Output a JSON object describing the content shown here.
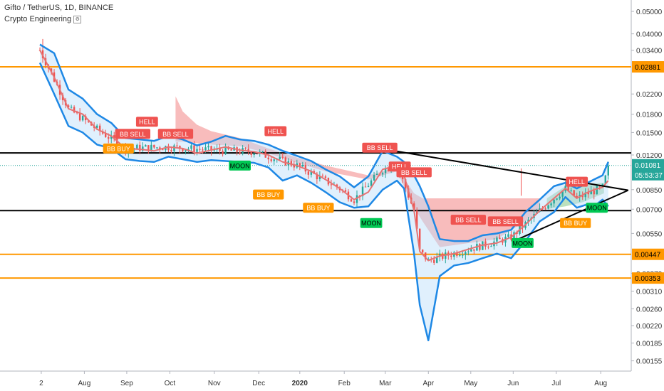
{
  "header": {
    "title": "Gifto / TetherUS, 1D, BINANCE",
    "indicator": "Crypto Engineering",
    "indicator_icon": "settings-icon"
  },
  "chart_data": {
    "type": "candlestick",
    "symbol": "Gifto / TetherUS",
    "interval": "1D",
    "exchange": "BINANCE",
    "y_scale": "log",
    "ylim": [
      0.0014,
      0.056
    ],
    "y_ticks": [
      "0.05000",
      "0.04000",
      "0.03400",
      "0.02200",
      "0.01800",
      "0.01500",
      "0.01200",
      "0.00850",
      "0.00700",
      "0.00550",
      "0.00370",
      "0.00310",
      "0.00260",
      "0.00220",
      "0.00185",
      "0.00155"
    ],
    "x_ticks": [
      "2",
      "Aug",
      "Sep",
      "Oct",
      "Nov",
      "Dec",
      "2020",
      "Feb",
      "Mar",
      "Apr",
      "May",
      "Jun",
      "Jul",
      "Aug"
    ],
    "bands": [
      {
        "x": 0,
        "y": 0.034,
        "lower": 0.03,
        "upper": 0.036
      },
      {
        "x": 10,
        "y": 0.026,
        "lower": 0.022,
        "upper": 0.033
      },
      {
        "x": 20,
        "y": 0.019,
        "lower": 0.016,
        "upper": 0.023
      },
      {
        "x": 30,
        "y": 0.018,
        "lower": 0.015,
        "upper": 0.021
      },
      {
        "x": 40,
        "y": 0.0155,
        "lower": 0.0133,
        "upper": 0.018
      },
      {
        "x": 50,
        "y": 0.0145,
        "lower": 0.0128,
        "upper": 0.0165
      },
      {
        "x": 60,
        "y": 0.0128,
        "lower": 0.0115,
        "upper": 0.0142
      },
      {
        "x": 70,
        "y": 0.0127,
        "lower": 0.0113,
        "upper": 0.014
      },
      {
        "x": 80,
        "y": 0.0125,
        "lower": 0.0112,
        "upper": 0.0138
      },
      {
        "x": 90,
        "y": 0.013,
        "lower": 0.0118,
        "upper": 0.0145
      },
      {
        "x": 100,
        "y": 0.0128,
        "lower": 0.0115,
        "upper": 0.014
      },
      {
        "x": 110,
        "y": 0.0122,
        "lower": 0.0112,
        "upper": 0.0132
      },
      {
        "x": 120,
        "y": 0.0126,
        "lower": 0.0114,
        "upper": 0.0137
      },
      {
        "x": 130,
        "y": 0.013,
        "lower": 0.0113,
        "upper": 0.0145
      },
      {
        "x": 140,
        "y": 0.0126,
        "lower": 0.0112,
        "upper": 0.014
      },
      {
        "x": 150,
        "y": 0.0124,
        "lower": 0.0111,
        "upper": 0.0138
      },
      {
        "x": 160,
        "y": 0.012,
        "lower": 0.0106,
        "upper": 0.0133
      },
      {
        "x": 170,
        "y": 0.0112,
        "lower": 0.0093,
        "upper": 0.0125
      },
      {
        "x": 180,
        "y": 0.0108,
        "lower": 0.0098,
        "upper": 0.0119
      },
      {
        "x": 190,
        "y": 0.0102,
        "lower": 0.0091,
        "upper": 0.0113
      },
      {
        "x": 200,
        "y": 0.0094,
        "lower": 0.0083,
        "upper": 0.0104
      },
      {
        "x": 210,
        "y": 0.0086,
        "lower": 0.0075,
        "upper": 0.0097
      },
      {
        "x": 220,
        "y": 0.0077,
        "lower": 0.0071,
        "upper": 0.0087
      },
      {
        "x": 230,
        "y": 0.0083,
        "lower": 0.0072,
        "upper": 0.0097
      },
      {
        "x": 240,
        "y": 0.0104,
        "lower": 0.0085,
        "upper": 0.0125
      },
      {
        "x": 250,
        "y": 0.0108,
        "lower": 0.0093,
        "upper": 0.0118
      },
      {
        "x": 255,
        "y": 0.0098,
        "lower": 0.0086,
        "upper": 0.0112
      },
      {
        "x": 262,
        "y": 0.0069,
        "lower": 0.0045,
        "upper": 0.0098
      },
      {
        "x": 266,
        "y": 0.0046,
        "lower": 0.0027,
        "upper": 0.0088
      },
      {
        "x": 272,
        "y": 0.0042,
        "lower": 0.0019,
        "upper": 0.0072
      },
      {
        "x": 280,
        "y": 0.0044,
        "lower": 0.0036,
        "upper": 0.0052
      },
      {
        "x": 290,
        "y": 0.0045,
        "lower": 0.004,
        "upper": 0.0051
      },
      {
        "x": 300,
        "y": 0.0047,
        "lower": 0.0041,
        "upper": 0.0051
      },
      {
        "x": 310,
        "y": 0.0049,
        "lower": 0.0043,
        "upper": 0.0054
      },
      {
        "x": 320,
        "y": 0.005,
        "lower": 0.0045,
        "upper": 0.0055
      },
      {
        "x": 330,
        "y": 0.0053,
        "lower": 0.0043,
        "upper": 0.0057
      },
      {
        "x": 340,
        "y": 0.006,
        "lower": 0.0051,
        "upper": 0.0068
      },
      {
        "x": 350,
        "y": 0.0069,
        "lower": 0.0062,
        "upper": 0.0077
      },
      {
        "x": 360,
        "y": 0.0078,
        "lower": 0.0068,
        "upper": 0.0088
      },
      {
        "x": 368,
        "y": 0.0086,
        "lower": 0.0079,
        "upper": 0.0091
      },
      {
        "x": 376,
        "y": 0.0078,
        "lower": 0.0071,
        "upper": 0.0086
      },
      {
        "x": 382,
        "y": 0.0082,
        "lower": 0.0073,
        "upper": 0.009
      },
      {
        "x": 388,
        "y": 0.0085,
        "lower": 0.0072,
        "upper": 0.0094
      },
      {
        "x": 394,
        "y": 0.0087,
        "lower": 0.0077,
        "upper": 0.0098
      },
      {
        "x": 398,
        "y": 0.0093,
        "lower": 0.0072,
        "upper": 0.0112
      }
    ],
    "candles": {
      "seed_points": [
        {
          "x": 0,
          "y": 0.034
        },
        {
          "x": 20,
          "y": 0.019
        },
        {
          "x": 40,
          "y": 0.0155
        },
        {
          "x": 60,
          "y": 0.0128
        },
        {
          "x": 90,
          "y": 0.013
        },
        {
          "x": 120,
          "y": 0.0126
        },
        {
          "x": 150,
          "y": 0.0124
        },
        {
          "x": 180,
          "y": 0.0108
        },
        {
          "x": 210,
          "y": 0.0086
        },
        {
          "x": 220,
          "y": 0.0077
        },
        {
          "x": 240,
          "y": 0.0104
        },
        {
          "x": 250,
          "y": 0.0108
        },
        {
          "x": 262,
          "y": 0.0069
        },
        {
          "x": 266,
          "y": 0.0046
        },
        {
          "x": 272,
          "y": 0.0042
        },
        {
          "x": 300,
          "y": 0.0047
        },
        {
          "x": 330,
          "y": 0.0053
        },
        {
          "x": 350,
          "y": 0.0069
        },
        {
          "x": 368,
          "y": 0.0086
        },
        {
          "x": 376,
          "y": 0.0078
        },
        {
          "x": 394,
          "y": 0.0087
        },
        {
          "x": 398,
          "y": 0.0105
        }
      ],
      "count": 200,
      "colors": {
        "up": "#26a69a",
        "down": "#ef5350"
      }
    },
    "cloud": [
      {
        "x": 95,
        "top": 0.0215,
        "bottom": 0.0137
      },
      {
        "x": 100,
        "top": 0.0185,
        "bottom": 0.0137
      },
      {
        "x": 110,
        "top": 0.0162,
        "bottom": 0.0135
      },
      {
        "x": 120,
        "top": 0.0152,
        "bottom": 0.0133
      },
      {
        "x": 140,
        "top": 0.0142,
        "bottom": 0.0131
      },
      {
        "x": 160,
        "top": 0.0128,
        "bottom": 0.0122
      },
      {
        "x": 180,
        "top": 0.0117,
        "bottom": 0.0111
      },
      {
        "x": 200,
        "top": 0.0108,
        "bottom": 0.0102
      },
      {
        "x": 230,
        "top": 0.0098,
        "bottom": 0.0094
      },
      {
        "x": 250,
        "top": 0.0106,
        "bottom": 0.0102
      },
      {
        "x": 262,
        "top": 0.0082,
        "bottom": 0.0071
      },
      {
        "x": 268,
        "top": 0.0078,
        "bottom": 0.0062
      },
      {
        "x": 280,
        "top": 0.0078,
        "bottom": 0.0048
      },
      {
        "x": 320,
        "top": 0.0078,
        "bottom": 0.0052
      },
      {
        "x": 350,
        "top": 0.0078,
        "bottom": 0.0068
      }
    ],
    "green_cloud": [
      {
        "x": 355,
        "top": 0.0078,
        "bottom": 0.007
      },
      {
        "x": 368,
        "top": 0.0088,
        "bottom": 0.0072
      },
      {
        "x": 380,
        "top": 0.009,
        "bottom": 0.0075
      },
      {
        "x": 395,
        "top": 0.0091,
        "bottom": 0.0082
      }
    ],
    "trend_lines": [
      {
        "x1": 245,
        "y1": 0.0126,
        "x2": 412,
        "y2": 0.00845,
        "color": "#000000"
      },
      {
        "x1": 335,
        "y1": 0.0052,
        "x2": 412,
        "y2": 0.00845,
        "color": "#000000"
      }
    ],
    "horizontal_levels": [
      {
        "price": 0.02881,
        "label": "0.02881",
        "color": "#ff9800"
      },
      {
        "price": 0.01225,
        "label": "",
        "color": "#000000"
      },
      {
        "price": 0.0069,
        "label": "",
        "color": "#000000"
      },
      {
        "price": 0.00447,
        "label": "0.00447",
        "color": "#ff9800"
      },
      {
        "price": 0.00353,
        "label": "0.00353",
        "color": "#ff9800"
      }
    ],
    "last_price": {
      "price": 0.01081,
      "label": "0.01081",
      "countdown": "05:53:37",
      "color": "#26a69a"
    },
    "signals": [
      {
        "x": 55,
        "y": 0.0128,
        "label": "BB BUY",
        "color": "#ff9800"
      },
      {
        "x": 65,
        "y": 0.0148,
        "label": "BB SELL",
        "color": "#ef5350"
      },
      {
        "x": 75,
        "y": 0.0167,
        "label": "HELL",
        "color": "#ef5350"
      },
      {
        "x": 95,
        "y": 0.0148,
        "label": "BB SELL",
        "color": "#ef5350"
      },
      {
        "x": 140,
        "y": 0.0108,
        "label": "MOON",
        "color": "#00c853"
      },
      {
        "x": 165,
        "y": 0.0152,
        "label": "HELL",
        "color": "#ef5350"
      },
      {
        "x": 160,
        "y": 0.0081,
        "label": "BB BUY",
        "color": "#ff9800"
      },
      {
        "x": 195,
        "y": 0.0071,
        "label": "BB BUY",
        "color": "#ff9800"
      },
      {
        "x": 238,
        "y": 0.0129,
        "label": "BB SELL",
        "color": "#ef5350"
      },
      {
        "x": 252,
        "y": 0.0107,
        "label": "HELL",
        "color": "#ef5350"
      },
      {
        "x": 262,
        "y": 0.0101,
        "label": "BB SELL",
        "color": "#ef5350"
      },
      {
        "x": 232,
        "y": 0.0061,
        "label": "MOON",
        "color": "#00c853"
      },
      {
        "x": 300,
        "y": 0.0063,
        "label": "BB SELL",
        "color": "#ef5350"
      },
      {
        "x": 326,
        "y": 0.0062,
        "label": "BB SELL",
        "color": "#ef5350"
      },
      {
        "x": 338,
        "y": 0.005,
        "label": "MOON",
        "color": "#00c853"
      },
      {
        "x": 376,
        "y": 0.0092,
        "label": "HELL",
        "color": "#ef5350"
      },
      {
        "x": 390,
        "y": 0.0071,
        "label": "MOON",
        "color": "#00c853"
      },
      {
        "x": 375,
        "y": 0.0061,
        "label": "BB BUY",
        "color": "#ff9800"
      }
    ],
    "colors": {
      "bands": "#1e88e5",
      "basis": "#e57373",
      "cloud": "#f6a5a5",
      "green_cloud": "#a5d6a7",
      "background": "#ffffff"
    }
  }
}
